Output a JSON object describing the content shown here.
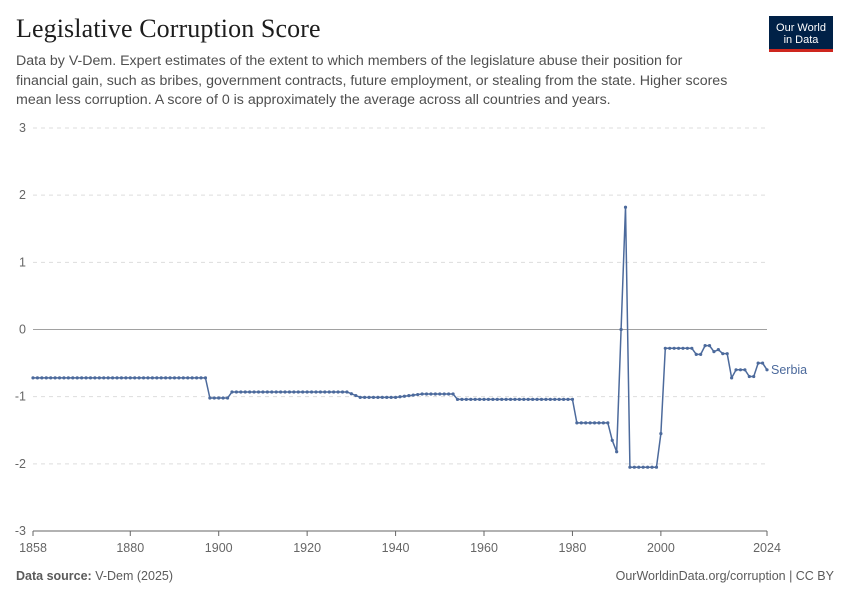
{
  "header": {
    "title": "Legislative Corruption Score",
    "subtitle": "Data by V-Dem. Expert estimates of the extent to which members of the legislature abuse their position for financial gain, such as bribes, government contracts, future employment, or stealing from the state. Higher scores mean less corruption. A score of 0 is approximately the average across all countries and years."
  },
  "logo": {
    "line1": "Our World",
    "line2": "in Data"
  },
  "footer": {
    "source_label": "Data source:",
    "source_value": "V-Dem (2025)",
    "credit": "OurWorldinData.org/corruption | CC BY"
  },
  "colors": {
    "series": "#4c6a9c",
    "grid": "#dddddd",
    "zero_line": "#a1a1a1",
    "axis": "#666666"
  },
  "chart_data": {
    "type": "line",
    "title": "Legislative Corruption Score",
    "xlabel": "",
    "ylabel": "",
    "xlim": [
      1858,
      2024
    ],
    "ylim": [
      -3,
      3
    ],
    "y_ticks": [
      3,
      2,
      1,
      0,
      -1,
      -2,
      -3
    ],
    "x_ticks": [
      1858,
      1880,
      1900,
      1920,
      1940,
      1960,
      1980,
      2000,
      2024
    ],
    "grid": true,
    "series": [
      {
        "name": "Serbia",
        "points": [
          [
            1858,
            -0.72
          ],
          [
            1897,
            -0.72
          ],
          [
            1898,
            -1.02
          ],
          [
            1902,
            -1.02
          ],
          [
            1903,
            -0.93
          ],
          [
            1929,
            -0.93
          ],
          [
            1932,
            -1.01
          ],
          [
            1940,
            -1.01
          ],
          [
            1946,
            -0.96
          ],
          [
            1953,
            -0.96
          ],
          [
            1954,
            -1.04
          ],
          [
            1980,
            -1.04
          ],
          [
            1981,
            -1.39
          ],
          [
            1988,
            -1.39
          ],
          [
            1989,
            -1.65
          ],
          [
            1990,
            -1.82
          ],
          [
            1992,
            1.82
          ],
          [
            1993,
            -2.05
          ],
          [
            1999,
            -2.05
          ],
          [
            2000,
            -1.55
          ],
          [
            2001,
            -0.28
          ],
          [
            2007,
            -0.28
          ],
          [
            2008,
            -0.37
          ],
          [
            2009,
            -0.37
          ],
          [
            2010,
            -0.24
          ],
          [
            2011,
            -0.24
          ],
          [
            2012,
            -0.33
          ],
          [
            2013,
            -0.3
          ],
          [
            2014,
            -0.36
          ],
          [
            2015,
            -0.36
          ],
          [
            2016,
            -0.72
          ],
          [
            2017,
            -0.6
          ],
          [
            2019,
            -0.6
          ],
          [
            2020,
            -0.7
          ],
          [
            2021,
            -0.7
          ],
          [
            2022,
            -0.5
          ],
          [
            2023,
            -0.5
          ],
          [
            2024,
            -0.6
          ]
        ]
      }
    ]
  }
}
